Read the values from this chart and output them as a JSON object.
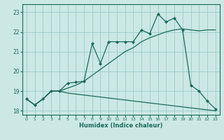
{
  "xlabel": "Humidex (Indice chaleur)",
  "bg_color": "#cce8e4",
  "grid_color": "#99cccc",
  "line_color": "#1a6b5a",
  "xlim": [
    -0.5,
    23.5
  ],
  "ylim": [
    17.8,
    23.4
  ],
  "yticks": [
    18,
    19,
    20,
    21,
    22,
    23
  ],
  "xticks": [
    0,
    1,
    2,
    3,
    4,
    5,
    6,
    7,
    8,
    9,
    10,
    11,
    12,
    13,
    14,
    15,
    16,
    17,
    18,
    19,
    20,
    21,
    22,
    23
  ],
  "line1_x": [
    0,
    1,
    2,
    3,
    4,
    5,
    6,
    7,
    8,
    9,
    10,
    11,
    12,
    13,
    14,
    15,
    16,
    17,
    18,
    19,
    20,
    21,
    22,
    23
  ],
  "line1_y": [
    18.6,
    18.3,
    18.6,
    19.0,
    19.0,
    19.4,
    19.45,
    19.5,
    21.4,
    20.4,
    21.5,
    21.5,
    21.5,
    21.5,
    22.1,
    21.9,
    22.9,
    22.5,
    22.7,
    22.1,
    19.3,
    19.0,
    18.5,
    18.1
  ],
  "line2_x": [
    0,
    1,
    2,
    3,
    4,
    5,
    6,
    7,
    8,
    9,
    10,
    11,
    12,
    13,
    14,
    15,
    16,
    17,
    18,
    19,
    20,
    21,
    22,
    23
  ],
  "line2_y": [
    18.6,
    18.3,
    18.6,
    19.0,
    19.0,
    19.15,
    19.3,
    19.5,
    19.8,
    20.1,
    20.4,
    20.7,
    21.0,
    21.2,
    21.5,
    21.7,
    21.85,
    22.0,
    22.1,
    22.15,
    22.1,
    22.05,
    22.1,
    22.1
  ],
  "line3_x": [
    0,
    1,
    2,
    3,
    4,
    5,
    6,
    7,
    8,
    9,
    10,
    11,
    12,
    13,
    14,
    15,
    16,
    17,
    18,
    19,
    20,
    21,
    22,
    23
  ],
  "line3_y": [
    18.6,
    18.3,
    18.6,
    19.0,
    19.0,
    18.9,
    18.85,
    18.8,
    18.75,
    18.7,
    18.65,
    18.6,
    18.55,
    18.5,
    18.45,
    18.4,
    18.35,
    18.3,
    18.25,
    18.2,
    18.15,
    18.1,
    18.05,
    18.0
  ]
}
